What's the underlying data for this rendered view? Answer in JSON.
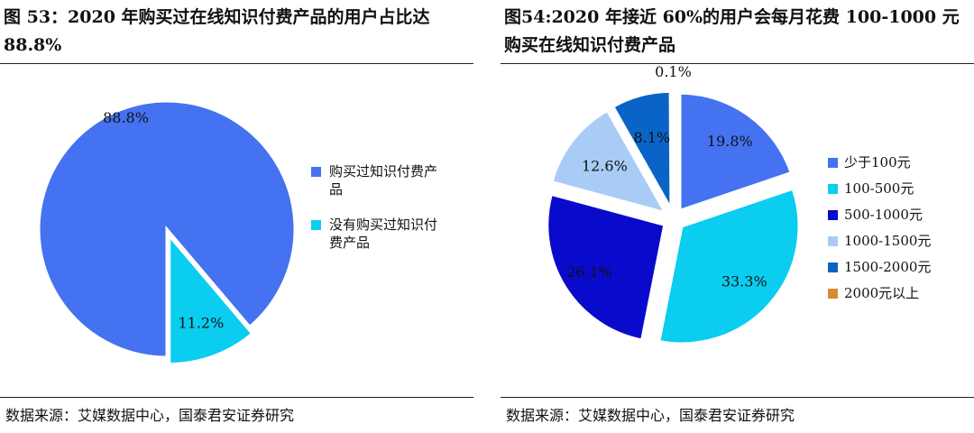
{
  "left": {
    "title": "图 53：2020 年购买过在线知识付费产品的用户占比达 88.8%",
    "source": "数据来源：艾媒数据中心，国泰君安证券研究",
    "chart_data": {
      "type": "pie",
      "title": "图 53：2020 年购买过在线知识付费产品的用户占比达 88.8%",
      "slices": [
        {
          "label": "购买过知识付费产品",
          "value": 88.8,
          "value_label": "88.8%",
          "color": "#4472F0"
        },
        {
          "label": "没有购买过知识付费产品",
          "value": 11.2,
          "value_label": "11.2%",
          "color": "#0ACDF0"
        }
      ],
      "exploded": [
        false,
        true
      ],
      "start_angle_deg": 180,
      "direction": "clockwise",
      "legend_position": "right"
    }
  },
  "right": {
    "title": "图54:2020 年接近 60%的用户会每月花费 100-1000 元购买在线知识付费产品",
    "source": "数据来源：艾媒数据中心，国泰君安证券研究",
    "chart_data": {
      "type": "pie",
      "title": "图54:2020 年接近 60%的用户会每月花费 100-1000 元购买在线知识付费产品",
      "slices": [
        {
          "label": "少于100元",
          "value": 19.8,
          "value_label": "19.8%",
          "color": "#4472F0"
        },
        {
          "label": "100-500元",
          "value": 33.3,
          "value_label": "33.3%",
          "color": "#0ACDF0"
        },
        {
          "label": "500-1000元",
          "value": 26.1,
          "value_label": "26.1%",
          "color": "#0A0ACD"
        },
        {
          "label": "1000-1500元",
          "value": 12.6,
          "value_label": "12.6%",
          "color": "#A9CCF7"
        },
        {
          "label": "1500-2000元",
          "value": 8.1,
          "value_label": "8.1%",
          "color": "#0A64C8"
        },
        {
          "label": "2000元以上",
          "value": 0.1,
          "value_label": "0.1%",
          "color": "#D68A36"
        }
      ],
      "exploded": true,
      "start_angle_deg": 0,
      "direction": "clockwise",
      "legend_position": "right"
    }
  }
}
